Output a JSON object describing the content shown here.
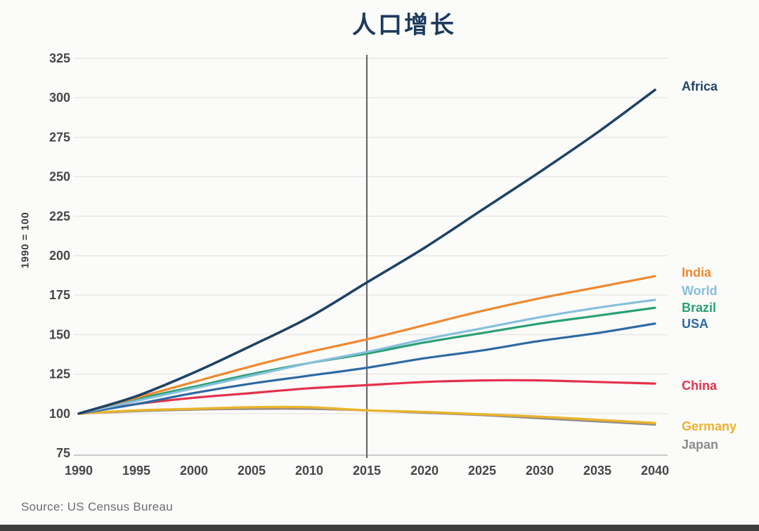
{
  "title": "人口增长",
  "source": "Source: US Census Bureau",
  "chart_data": {
    "type": "line",
    "title": "人口增长",
    "xlabel": "",
    "ylabel": "1990 = 100",
    "x": [
      1990,
      1995,
      2000,
      2005,
      2010,
      2015,
      2020,
      2025,
      2030,
      2035,
      2040
    ],
    "x_tick_labels": [
      "1990",
      "1995",
      "2000",
      "2005",
      "2010",
      "2015",
      "2020",
      "2025",
      "2030",
      "2035",
      "2040"
    ],
    "y_ticks": [
      75,
      100,
      125,
      150,
      175,
      200,
      225,
      250,
      275,
      300,
      325
    ],
    "ylim": [
      75,
      325
    ],
    "xlim": [
      1990,
      2040
    ],
    "grid": "horizontal",
    "vline_x": 2015,
    "legend_position": "right-of-line-ends",
    "colors": {
      "title": "#1c3a5c",
      "axis_text": "#474747",
      "gridline": "#e7e7e6",
      "axis_line": "#bbbbbb",
      "vline": "#6b6b6b",
      "source_text": "#6e6e6e"
    },
    "series": [
      {
        "name": "Africa",
        "color": "#1f4466",
        "width": 3.6,
        "label_dy": -5,
        "values": [
          100,
          111,
          126,
          143,
          161,
          183,
          205,
          229,
          253,
          278,
          305
        ]
      },
      {
        "name": "India",
        "color": "#f0882f",
        "width": 3.2,
        "label_dy": -5,
        "values": [
          100,
          110,
          120,
          130,
          139,
          147,
          156,
          165,
          173,
          180,
          187
        ]
      },
      {
        "name": "World",
        "color": "#85c0dc",
        "width": 3.2,
        "label_dy": -13,
        "values": [
          100,
          108,
          116,
          124,
          132,
          139,
          147,
          154,
          161,
          167,
          172
        ]
      },
      {
        "name": "Brazil",
        "color": "#2aa173",
        "width": 3.2,
        "label_dy": 0,
        "values": [
          100,
          109,
          117,
          125,
          132,
          138,
          145,
          151,
          157,
          162,
          167
        ]
      },
      {
        "name": "USA",
        "color": "#2d6aa3",
        "width": 3.2,
        "label_dy": 0,
        "values": [
          100,
          106,
          113,
          119,
          124,
          129,
          135,
          140,
          146,
          151,
          157
        ]
      },
      {
        "name": "China",
        "color": "#e4314b",
        "width": 3.2,
        "label_dy": 3,
        "values": [
          100,
          106,
          110,
          113,
          116,
          118,
          120,
          121,
          121,
          120,
          119
        ]
      },
      {
        "name": "Germany",
        "color": "#eab32b",
        "width": 3.4,
        "label_dy": 5,
        "values": [
          100,
          102,
          103,
          104,
          104,
          102,
          101,
          99.5,
          98,
          96,
          94
        ]
      },
      {
        "name": "Japan",
        "color": "#8c8c8c",
        "width": 3.0,
        "label_dy": 28,
        "values": [
          100,
          101.5,
          102.5,
          103,
          103,
          102,
          100.5,
          99,
          97,
          95,
          93
        ]
      }
    ]
  }
}
